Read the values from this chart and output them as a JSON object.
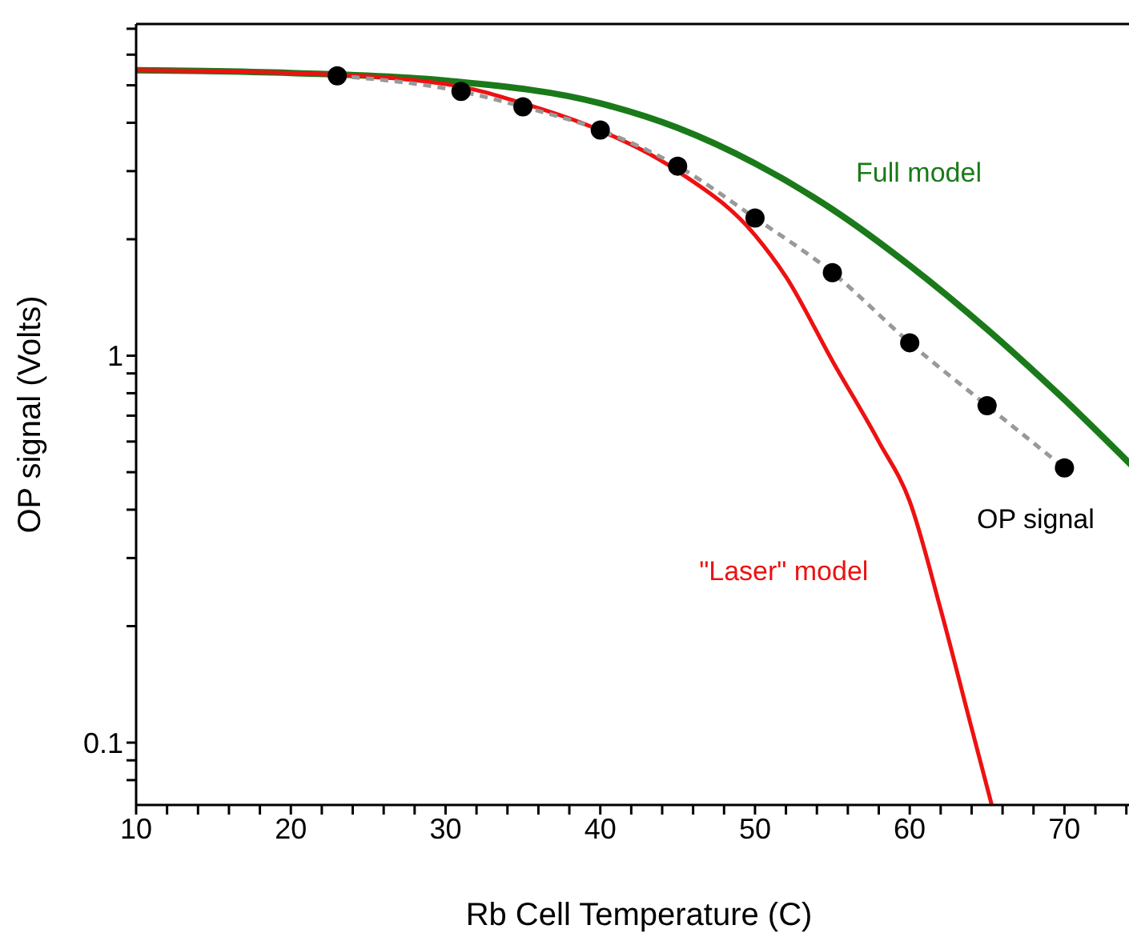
{
  "chart_data": {
    "type": "line",
    "xlabel": "Rb Cell Temperature (C)",
    "ylabel": "OP signal (Volts)",
    "log": "y",
    "xlim": [
      10,
      75
    ],
    "xticks": [
      10,
      {
        "value": 12,
        "label": null
      },
      {
        "value": 14,
        "label": null
      },
      {
        "value": 16,
        "label": null
      },
      {
        "value": 18,
        "label": null
      },
      20,
      {
        "value": 22,
        "label": null
      },
      {
        "value": 24,
        "label": null
      },
      {
        "value": 26,
        "label": null
      },
      {
        "value": 28,
        "label": null
      },
      30,
      {
        "value": 32,
        "label": null
      },
      {
        "value": 34,
        "label": null
      },
      {
        "value": 36,
        "label": null
      },
      {
        "value": 38,
        "label": null
      },
      40,
      {
        "value": 42,
        "label": null
      },
      {
        "value": 44,
        "label": null
      },
      {
        "value": 46,
        "label": null
      },
      {
        "value": 48,
        "label": null
      },
      50,
      {
        "value": 52,
        "label": null
      },
      {
        "value": 54,
        "label": null
      },
      {
        "value": 56,
        "label": null
      },
      {
        "value": 58,
        "label": null
      },
      60,
      {
        "value": 62,
        "label": null
      },
      {
        "value": 64,
        "label": null
      },
      {
        "value": 66,
        "label": null
      },
      {
        "value": 68,
        "label": null
      },
      70,
      {
        "value": 72,
        "label": null
      },
      {
        "value": 74,
        "label": null
      }
    ],
    "ylim": [
      0.069,
      7.2
    ],
    "yticks": [
      {
        "value": 0.08,
        "label": null
      },
      {
        "value": 0.09,
        "label": null
      },
      0.1,
      {
        "value": 0.2,
        "label": null
      },
      {
        "value": 0.3,
        "label": null
      },
      {
        "value": 0.4,
        "label": null
      },
      {
        "value": 0.5,
        "label": null
      },
      {
        "value": 0.6,
        "label": null
      },
      {
        "value": 0.7,
        "label": null
      },
      {
        "value": 0.8,
        "label": null
      },
      {
        "value": 0.9,
        "label": null
      },
      1,
      {
        "value": 2,
        "label": null
      },
      {
        "value": 3,
        "label": null
      },
      {
        "value": 4,
        "label": null
      },
      {
        "value": 5,
        "label": null
      },
      {
        "value": 6,
        "label": null
      },
      {
        "value": 7,
        "label": null
      }
    ],
    "grid": false,
    "legend": false,
    "series": [
      {
        "name": "Full model",
        "color": "#1a7a1a",
        "line_style": "solid",
        "x": [
          10,
          20,
          30,
          40,
          45,
          50,
          55,
          60,
          65,
          70,
          75
        ],
        "values": [
          5.47,
          5.38,
          5.14,
          4.49,
          3.88,
          3.14,
          2.39,
          1.71,
          1.17,
          0.77,
          0.49
        ]
      },
      {
        "name": "\"Laser\" model",
        "color": "#ee1111",
        "line_style": "solid",
        "x": [
          10,
          20,
          30,
          35,
          40,
          45,
          50,
          52,
          55,
          58,
          60,
          62,
          64,
          65.3
        ],
        "values": [
          5.47,
          5.38,
          5.04,
          4.49,
          3.82,
          3.0,
          2.05,
          1.6,
          0.97,
          0.6,
          0.42,
          0.221,
          0.109,
          0.069
        ]
      },
      {
        "color": "#999999",
        "line_style": "dashed",
        "x": [
          23,
          31,
          35,
          40,
          45,
          50,
          55,
          60,
          65,
          70
        ],
        "values": [
          5.29,
          4.82,
          4.4,
          3.83,
          3.09,
          2.27,
          1.64,
          1.08,
          0.743,
          0.513
        ]
      },
      {
        "name": "OP signal",
        "type": "scatter",
        "color": "#000000",
        "marker": "circle",
        "x": [
          23,
          31,
          35,
          40,
          45,
          50,
          55,
          60,
          65,
          70
        ],
        "values": [
          5.29,
          4.82,
          4.4,
          3.83,
          3.09,
          2.27,
          1.64,
          1.08,
          0.743,
          0.513
        ]
      }
    ]
  }
}
